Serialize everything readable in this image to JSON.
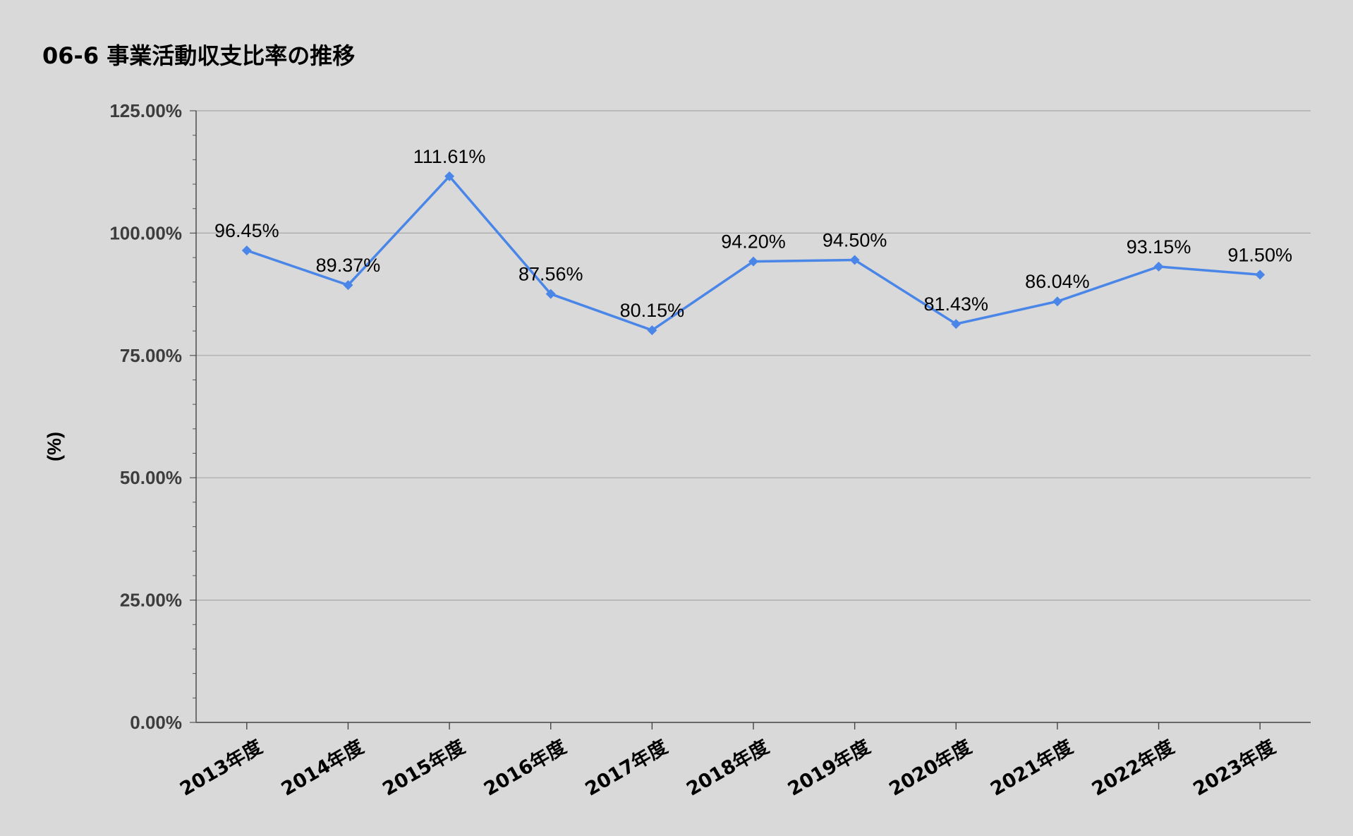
{
  "chart_data": {
    "type": "line",
    "title": "06-6 事業活動収支比率の推移",
    "xlabel": "",
    "ylabel": "(%)",
    "categories": [
      "2013年度",
      "2014年度",
      "2015年度",
      "2016年度",
      "2017年度",
      "2018年度",
      "2019年度",
      "2020年度",
      "2021年度",
      "2022年度",
      "2023年度"
    ],
    "series": [
      {
        "values": [
          96.45,
          89.37,
          111.61,
          87.56,
          80.15,
          94.2,
          94.5,
          81.43,
          86.04,
          93.15,
          91.5
        ],
        "data_labels": [
          "96.45%",
          "89.37%",
          "111.61%",
          "87.56%",
          "80.15%",
          "94.20%",
          "94.50%",
          "81.43%",
          "86.04%",
          "93.15%",
          "91.50%"
        ],
        "color": "#4a86e8",
        "marker": "diamond"
      }
    ],
    "ylim": [
      0,
      125
    ],
    "yticks": [
      0,
      25,
      50,
      75,
      100,
      125
    ],
    "ytick_labels": [
      "0.00%",
      "25.00%",
      "50.00%",
      "75.00%",
      "100.00%",
      "125.00%"
    ],
    "grid": true,
    "legend": "none"
  }
}
